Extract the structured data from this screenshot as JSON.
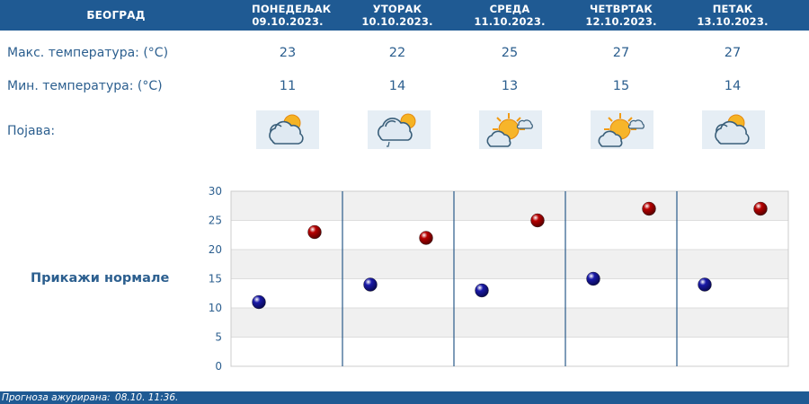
{
  "header": {
    "city": "БЕОГРАД",
    "days": [
      {
        "name": "ПОНЕДЕЉАК",
        "date": "09.10.2023."
      },
      {
        "name": "УТОРАК",
        "date": "10.10.2023."
      },
      {
        "name": "СРЕДА",
        "date": "11.10.2023."
      },
      {
        "name": "ЧЕТВРТАК",
        "date": "12.10.2023."
      },
      {
        "name": "ПЕТАК",
        "date": "13.10.2023."
      }
    ]
  },
  "rows": {
    "max_label": "Макс. температура: (°C)",
    "min_label": "Мин. температура: (°C)",
    "phenomenon_label": "Појава:",
    "max": [
      "23",
      "22",
      "25",
      "27",
      "27"
    ],
    "min": [
      "11",
      "14",
      "13",
      "15",
      "14"
    ],
    "icons": [
      "partly-cloudy-icon",
      "cloud-rain-sun-icon",
      "sun-cloud-icon",
      "sun-cloud-icon",
      "partly-cloudy-icon"
    ]
  },
  "normals_label": "Прикажи нормале",
  "chart_data": {
    "type": "scatter",
    "categories": [
      "ПОНЕДЕЉАК",
      "УТОРАК",
      "СРЕДА",
      "ЧЕТВРТАК",
      "ПЕТАК"
    ],
    "series": [
      {
        "values": [
          11,
          14,
          13,
          15,
          14
        ],
        "color": "#1a1aa8"
      },
      {
        "values": [
          23,
          22,
          25,
          27,
          27
        ],
        "color": "#b80000"
      }
    ],
    "yticks": [
      "0",
      "5",
      "10",
      "15",
      "20",
      "25",
      "30"
    ],
    "ylim": [
      0,
      30
    ],
    "grid": true
  },
  "footer": {
    "label": "Прогноза ажурирана:",
    "value": "08.10. 11:36."
  },
  "colors": {
    "header_bg": "#1f5a93",
    "text_blue": "#2c5f8f",
    "min_point": "#1a1aa8",
    "max_point": "#b80000"
  }
}
